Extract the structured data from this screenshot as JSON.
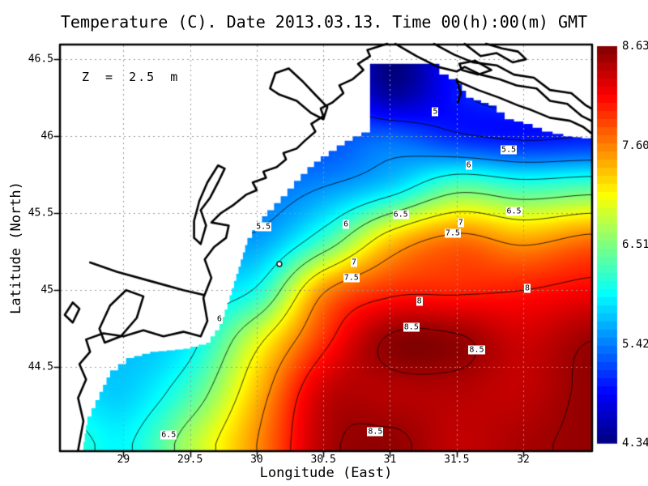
{
  "title": "Temperature (C). Date 2013.03.13. Time 00(h):00(m) GMT",
  "annotation": "Z = 2.5 m",
  "colors": {
    "land": "#ffffff",
    "coast": "#000000",
    "grid": "#999999",
    "contour": "#000000",
    "frame": "#000000"
  },
  "chart_data": {
    "type": "heatmap",
    "xlabel": "Longitude (East)",
    "ylabel": "Latitude (North)",
    "lon_range": [
      28.53,
      32.51
    ],
    "lat_range": [
      43.96,
      46.59
    ],
    "xticks": [
      29,
      29.5,
      30,
      30.5,
      31,
      31.5,
      32
    ],
    "xtick_labels": [
      "29",
      "29.5",
      "30",
      "30.5",
      "31",
      "31.5",
      "32"
    ],
    "yticks": [
      44.5,
      45,
      45.5,
      46,
      46.5
    ],
    "ytick_labels": [
      "44.5",
      "45",
      "45.5",
      "46",
      "46.5"
    ],
    "colorbar": {
      "min": 4.34,
      "max": 8.63,
      "tick_labels": [
        "8.63",
        "7.60",
        "6.51",
        "5.42",
        "4.34"
      ],
      "colormap": "jet"
    },
    "grid_lons": [
      28.5,
      29.0,
      29.5,
      30.0,
      30.5,
      31.0,
      31.5,
      32.0,
      32.5
    ],
    "grid_lats": [
      46.6,
      46.3,
      46.0,
      45.67,
      45.33,
      45.0,
      44.67,
      44.33,
      44.0
    ],
    "temps": [
      [
        5.9,
        5.7,
        5.5,
        5.2,
        5.3,
        4.34,
        5.0,
        5.2,
        5.4
      ],
      [
        5.8,
        5.6,
        5.4,
        5.2,
        5.3,
        4.45,
        4.95,
        5.2,
        5.4
      ],
      [
        5.7,
        5.5,
        5.35,
        5.3,
        5.2,
        5.3,
        5.05,
        4.95,
        5.0
      ],
      [
        5.6,
        5.5,
        5.4,
        5.35,
        5.5,
        5.8,
        6.35,
        6.2,
        6.3
      ],
      [
        5.8,
        5.7,
        5.7,
        5.55,
        6.2,
        7.2,
        7.6,
        7.4,
        7.6
      ],
      [
        5.8,
        5.85,
        5.85,
        6.05,
        7.45,
        7.9,
        7.95,
        8.0,
        8.1
      ],
      [
        5.8,
        5.7,
        5.9,
        6.9,
        7.9,
        8.55,
        8.55,
        8.3,
        8.5
      ],
      [
        5.9,
        5.75,
        6.25,
        7.3,
        8.3,
        8.4,
        8.4,
        8.35,
        8.55
      ],
      [
        6.2,
        5.95,
        6.7,
        7.5,
        8.4,
        8.55,
        8.35,
        8.45,
        8.55
      ]
    ],
    "contour_levels": [
      5,
      5.5,
      6,
      6.5,
      7,
      7.5,
      8,
      8.5
    ],
    "contour_labels": [
      {
        "text": "5",
        "lon": 31.34,
        "lat": 46.16
      },
      {
        "text": "5.5",
        "lon": 31.89,
        "lat": 45.91
      },
      {
        "text": "5.5",
        "lon": 30.05,
        "lat": 45.41
      },
      {
        "text": "6",
        "lon": 31.59,
        "lat": 45.81
      },
      {
        "text": "6",
        "lon": 30.67,
        "lat": 45.43
      },
      {
        "text": "6",
        "lon": 29.72,
        "lat": 44.81
      },
      {
        "text": "6.5",
        "lon": 31.08,
        "lat": 45.49
      },
      {
        "text": "6.5",
        "lon": 31.93,
        "lat": 45.51
      },
      {
        "text": "6.5",
        "lon": 29.34,
        "lat": 44.06
      },
      {
        "text": "7",
        "lon": 31.53,
        "lat": 45.44
      },
      {
        "text": "7",
        "lon": 30.73,
        "lat": 45.18
      },
      {
        "text": "7.5",
        "lon": 31.47,
        "lat": 45.37
      },
      {
        "text": "7.5",
        "lon": 30.71,
        "lat": 45.08
      },
      {
        "text": "8",
        "lon": 32.03,
        "lat": 45.01
      },
      {
        "text": "8",
        "lon": 31.22,
        "lat": 44.93
      },
      {
        "text": "8.5",
        "lon": 31.16,
        "lat": 44.76
      },
      {
        "text": "8.5",
        "lon": 31.65,
        "lat": 44.61
      },
      {
        "text": "8.5",
        "lon": 30.89,
        "lat": 44.08
      }
    ],
    "sea_boundary": [
      [
        28.69,
        43.96
      ],
      [
        28.73,
        44.18
      ],
      [
        28.82,
        44.34
      ],
      [
        28.9,
        44.48
      ],
      [
        29.02,
        44.56
      ],
      [
        29.2,
        44.6
      ],
      [
        29.45,
        44.62
      ],
      [
        29.62,
        44.66
      ],
      [
        29.72,
        44.78
      ],
      [
        29.78,
        44.92
      ],
      [
        29.83,
        45.06
      ],
      [
        29.88,
        45.2
      ],
      [
        29.93,
        45.34
      ],
      [
        30.0,
        45.44
      ],
      [
        30.08,
        45.52
      ],
      [
        30.18,
        45.61
      ],
      [
        30.28,
        45.71
      ],
      [
        30.38,
        45.8
      ],
      [
        30.48,
        45.87
      ],
      [
        30.6,
        45.94
      ],
      [
        30.72,
        46.0
      ],
      [
        30.85,
        46.05
      ],
      [
        30.85,
        46.47
      ],
      [
        31.37,
        46.47
      ],
      [
        31.37,
        46.4
      ],
      [
        31.51,
        46.34
      ],
      [
        31.57,
        46.25
      ],
      [
        31.74,
        46.2
      ],
      [
        31.86,
        46.11
      ],
      [
        32.0,
        46.08
      ],
      [
        32.14,
        46.03
      ],
      [
        32.3,
        46.0
      ],
      [
        32.51,
        45.98
      ],
      [
        32.51,
        43.96
      ]
    ],
    "coastlines": [
      [
        [
          28.66,
          43.96
        ],
        [
          28.7,
          44.15
        ],
        [
          28.66,
          44.3
        ],
        [
          28.72,
          44.42
        ],
        [
          28.67,
          44.52
        ],
        [
          28.75,
          44.6
        ],
        [
          28.72,
          44.68
        ],
        [
          28.85,
          44.72
        ],
        [
          29.0,
          44.7
        ],
        [
          29.15,
          44.74
        ],
        [
          29.3,
          44.7
        ],
        [
          29.45,
          44.73
        ],
        [
          29.58,
          44.7
        ],
        [
          29.63,
          44.8
        ],
        [
          29.6,
          44.95
        ],
        [
          29.66,
          45.08
        ],
        [
          29.61,
          45.2
        ],
        [
          29.68,
          45.28
        ],
        [
          29.77,
          45.34
        ],
        [
          29.79,
          45.42
        ],
        [
          29.66,
          45.44
        ],
        [
          29.73,
          45.5
        ],
        [
          29.82,
          45.55
        ],
        [
          29.92,
          45.62
        ],
        [
          30.0,
          45.65
        ],
        [
          29.97,
          45.7
        ],
        [
          30.07,
          45.73
        ],
        [
          30.05,
          45.77
        ],
        [
          30.15,
          45.8
        ],
        [
          30.22,
          45.85
        ],
        [
          30.2,
          45.89
        ],
        [
          30.3,
          45.92
        ],
        [
          30.36,
          45.97
        ],
        [
          30.44,
          46.03
        ],
        [
          30.41,
          46.08
        ],
        [
          30.5,
          46.13
        ],
        [
          30.48,
          46.18
        ],
        [
          30.57,
          46.22
        ],
        [
          30.65,
          46.28
        ],
        [
          30.62,
          46.33
        ],
        [
          30.72,
          46.37
        ],
        [
          30.8,
          46.43
        ],
        [
          30.76,
          46.47
        ],
        [
          30.85,
          46.52
        ],
        [
          30.83,
          46.56
        ],
        [
          30.98,
          46.6
        ]
      ],
      [
        [
          28.75,
          45.18
        ],
        [
          28.95,
          45.12
        ],
        [
          29.2,
          45.06
        ],
        [
          29.45,
          45.0
        ],
        [
          29.6,
          44.97
        ]
      ],
      [
        [
          28.82,
          44.75
        ],
        [
          28.9,
          44.9
        ],
        [
          29.02,
          45.0
        ],
        [
          29.15,
          44.96
        ],
        [
          29.1,
          44.82
        ],
        [
          28.98,
          44.7
        ],
        [
          28.86,
          44.66
        ],
        [
          28.82,
          44.75
        ]
      ],
      [
        [
          29.58,
          45.3
        ],
        [
          29.62,
          45.42
        ],
        [
          29.58,
          45.52
        ],
        [
          29.65,
          45.6
        ],
        [
          29.71,
          45.7
        ],
        [
          29.76,
          45.79
        ],
        [
          29.71,
          45.81
        ],
        [
          29.63,
          45.7
        ],
        [
          29.57,
          45.58
        ],
        [
          29.53,
          45.45
        ],
        [
          29.53,
          45.34
        ],
        [
          29.58,
          45.3
        ]
      ],
      [
        [
          30.1,
          46.31
        ],
        [
          30.14,
          46.41
        ],
        [
          30.24,
          46.44
        ],
        [
          30.34,
          46.36
        ],
        [
          30.45,
          46.26
        ],
        [
          30.53,
          46.19
        ],
        [
          30.5,
          46.11
        ],
        [
          30.41,
          46.15
        ],
        [
          30.3,
          46.23
        ],
        [
          30.17,
          46.27
        ],
        [
          30.1,
          46.31
        ]
      ],
      [
        [
          31.04,
          46.6
        ],
        [
          31.2,
          46.52
        ],
        [
          31.36,
          46.45
        ],
        [
          31.5,
          46.42
        ],
        [
          31.56,
          46.45
        ],
        [
          31.68,
          46.4
        ],
        [
          31.82,
          46.37
        ],
        [
          31.95,
          46.33
        ],
        [
          32.1,
          46.31
        ],
        [
          32.2,
          46.23
        ],
        [
          32.33,
          46.21
        ],
        [
          32.44,
          46.13
        ],
        [
          32.51,
          46.1
        ]
      ],
      [
        [
          31.33,
          46.6
        ],
        [
          31.48,
          46.53
        ],
        [
          31.62,
          46.48
        ],
        [
          31.8,
          46.46
        ],
        [
          31.93,
          46.4
        ],
        [
          32.08,
          46.38
        ],
        [
          32.2,
          46.3
        ],
        [
          32.36,
          46.28
        ],
        [
          32.47,
          46.2
        ],
        [
          32.51,
          46.18
        ]
      ],
      [
        [
          31.56,
          46.6
        ],
        [
          31.68,
          46.52
        ],
        [
          31.8,
          46.54
        ],
        [
          31.92,
          46.48
        ],
        [
          32.02,
          46.5
        ],
        [
          31.96,
          46.55
        ],
        [
          31.84,
          46.57
        ],
        [
          31.72,
          46.6
        ]
      ],
      [
        [
          31.52,
          46.47
        ],
        [
          31.64,
          46.49
        ],
        [
          31.76,
          46.43
        ],
        [
          31.66,
          46.4
        ],
        [
          31.54,
          46.43
        ],
        [
          31.52,
          46.47
        ]
      ],
      [
        [
          31.5,
          46.36
        ],
        [
          31.66,
          46.3
        ],
        [
          31.82,
          46.25
        ],
        [
          31.96,
          46.2
        ],
        [
          32.06,
          46.17
        ],
        [
          32.2,
          46.12
        ],
        [
          32.35,
          46.1
        ],
        [
          32.45,
          46.06
        ],
        [
          32.51,
          46.02
        ]
      ],
      [
        [
          28.56,
          44.84
        ],
        [
          28.62,
          44.92
        ],
        [
          28.67,
          44.88
        ],
        [
          28.62,
          44.79
        ],
        [
          28.56,
          44.84
        ]
      ],
      [
        [
          31.5,
          46.37
        ],
        [
          31.53,
          46.28
        ],
        [
          31.51,
          46.22
        ]
      ]
    ],
    "station": {
      "lon": 30.17,
      "lat": 45.17
    }
  }
}
